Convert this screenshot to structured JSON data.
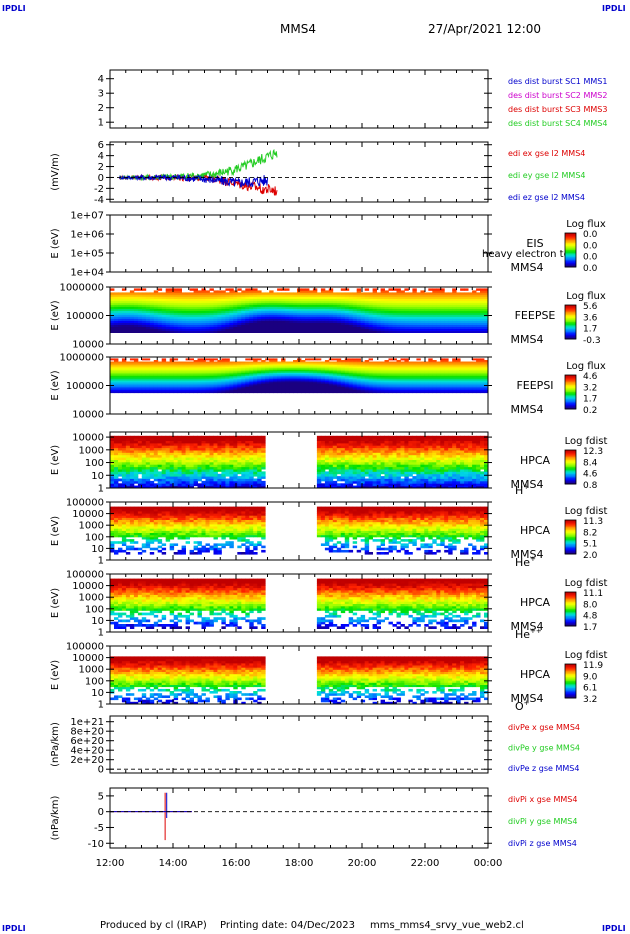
{
  "header": {
    "corner_tag": "IPDLI",
    "mission": "MMS4",
    "date_time": "27/Apr/2021 12:00"
  },
  "footer": {
    "credit": "Produced by cl (IRAP)",
    "printing_date": "Printing date: 04/Dec/2023",
    "script_name": "mms_mms4_srvy_vue_web2.cl"
  },
  "time_axis": {
    "tick_labels": [
      "12:00",
      "14:00",
      "16:00",
      "18:00",
      "20:00",
      "22:00",
      "00:00"
    ],
    "start_hour": 12,
    "end_hour": 24
  },
  "palette": {
    "blue": "#0000cc",
    "magenta": "#cc00cc",
    "red": "#dd0000",
    "green": "#22cc22",
    "spectro": [
      "#1a0080",
      "#0000ff",
      "#0080ff",
      "#00e0e0",
      "#00e000",
      "#a0ff00",
      "#ffff00",
      "#ff9900",
      "#ff2000",
      "#c00000"
    ]
  },
  "chart_data": [
    {
      "id": "des_dist_burst",
      "type": "line",
      "yticks": [
        "1",
        "2",
        "3",
        "4"
      ],
      "yvals": [
        1,
        2,
        3,
        4
      ],
      "ylim": [
        0.6,
        4.6
      ],
      "ylabel": "",
      "side_labels": [
        {
          "text": "des dist burst SC1 MMS1",
          "color": "#0000cc"
        },
        {
          "text": "des dist burst SC2 MMS2",
          "color": "#cc00cc"
        },
        {
          "text": "des dist burst SC3 MMS3",
          "color": "#dd0000"
        },
        {
          "text": "des dist burst SC4 MMS4",
          "color": "#22cc22"
        }
      ]
    },
    {
      "id": "edi_efield",
      "type": "line",
      "yticks": [
        "6",
        "4",
        "2",
        "0",
        "-2",
        "-4"
      ],
      "yvals": [
        6,
        4,
        2,
        0,
        -2,
        -4
      ],
      "ylim": [
        -4.5,
        6.5
      ],
      "ylabel": "(mV/m)",
      "zero_line": true,
      "series": [
        {
          "name": "edi ex gse l2 MMS4",
          "color": "#dd0000",
          "start_hour": 12.3,
          "end_hour": 17.3,
          "trend": [
            0,
            0,
            0,
            -0.2,
            -1.5,
            -2.5
          ]
        },
        {
          "name": "edi ey gse l2 MMS4",
          "color": "#22cc22",
          "start_hour": 12.3,
          "end_hour": 17.3,
          "trend": [
            0,
            0,
            0.2,
            0.5,
            2.0,
            4.5
          ]
        },
        {
          "name": "edi ez gse l2 MMS4",
          "color": "#0000cc",
          "start_hour": 12.3,
          "end_hour": 17.0,
          "trend": [
            0,
            0,
            0,
            -0.3,
            -1.0,
            -0.5
          ]
        }
      ],
      "side_labels": [
        {
          "text": "edi ex gse l2 MMS4",
          "color": "#dd0000"
        },
        {
          "text": "edi ey gse l2 MMS4",
          "color": "#22cc22"
        },
        {
          "text": "edi ez gse l2 MMS4",
          "color": "#0000cc"
        }
      ]
    },
    {
      "id": "eis",
      "type": "heatmap",
      "yticks": [
        "1e+07",
        "1e+06",
        "1e+05",
        "1e+04"
      ],
      "yvals": [
        7,
        6,
        5,
        4
      ],
      "ylim": [
        4,
        7
      ],
      "ylabel": "E (eV)",
      "log_y": true,
      "side_labels": [
        {
          "text": "EIS",
          "color": "#000000"
        },
        {
          "text": "MMS4",
          "color": "#000000"
        }
      ],
      "overlay_text": "heavy electron to",
      "colorbar": {
        "title": "Log flux",
        "ticks": [
          "0.0",
          "0.0",
          "0.0",
          "0.0"
        ]
      },
      "empty": true
    },
    {
      "id": "feepse",
      "type": "heatmap",
      "yticks": [
        "1000000",
        "100000",
        "10000"
      ],
      "yvals": [
        6,
        5,
        4
      ],
      "ylim": [
        4,
        6
      ],
      "ylabel": "E (eV)",
      "log_y": true,
      "side_labels": [
        {
          "text": "FEEPSE",
          "color": "#000000"
        },
        {
          "text": "MMS4",
          "color": "#000000"
        }
      ],
      "colorbar": {
        "title": "Log flux",
        "ticks": [
          "5.6",
          "3.6",
          "1.7",
          "-0.3"
        ]
      },
      "data_range": [
        4.4,
        5.95
      ],
      "peaks": [
        {
          "hour": 17.0,
          "strength": 1.0
        },
        {
          "hour": 19.0,
          "strength": 0.8
        },
        {
          "hour": 12.5,
          "strength": 0.6
        }
      ],
      "gap": null
    },
    {
      "id": "feepsi",
      "type": "heatmap",
      "yticks": [
        "1000000",
        "100000",
        "10000"
      ],
      "yvals": [
        6,
        5,
        4
      ],
      "ylim": [
        4,
        6
      ],
      "ylabel": "E (eV)",
      "log_y": true,
      "side_labels": [
        {
          "text": "FEEPSI",
          "color": "#000000"
        },
        {
          "text": "MMS4",
          "color": "#000000"
        }
      ],
      "colorbar": {
        "title": "Log flux",
        "ticks": [
          "4.6",
          "3.2",
          "1.7",
          "0.2"
        ]
      },
      "data_range": [
        4.75,
        5.95
      ],
      "peaks": [
        {
          "hour": 17.2,
          "strength": 1.0
        },
        {
          "hour": 18.6,
          "strength": 0.9
        }
      ],
      "gap": null
    },
    {
      "id": "hpca_h",
      "type": "heatmap",
      "yticks": [
        "10000",
        "1000",
        "100",
        "10",
        "1"
      ],
      "yvals": [
        4,
        3,
        2,
        1,
        0
      ],
      "ylim": [
        0,
        4.4
      ],
      "ylabel": "E (eV)",
      "log_y": true,
      "side_labels": [
        {
          "text": "HPCA",
          "color": "#000000"
        },
        {
          "text": "MMS4",
          "color": "#000000"
        }
      ],
      "species": {
        "base": "H",
        "sup": "+"
      },
      "colorbar": {
        "title": "Log fdist",
        "ticks": [
          "12.3",
          "8.4",
          "4.6",
          "0.8"
        ]
      },
      "data_range": [
        0,
        4.1
      ],
      "gap": [
        16.9,
        18.6
      ]
    },
    {
      "id": "hpca_he",
      "type": "heatmap",
      "yticks": [
        "100000",
        "10000",
        "1000",
        "100",
        "10",
        "1"
      ],
      "yvals": [
        5,
        4,
        3,
        2,
        1,
        0
      ],
      "ylim": [
        0,
        5
      ],
      "ylabel": "E (eV)",
      "log_y": true,
      "side_labels": [
        {
          "text": "HPCA",
          "color": "#000000"
        },
        {
          "text": "MMS4",
          "color": "#000000"
        }
      ],
      "species": {
        "base": "He",
        "sup": "+"
      },
      "colorbar": {
        "title": "Log fdist",
        "ticks": [
          "11.3",
          "8.2",
          "5.1",
          "2.0"
        ]
      },
      "data_range": [
        0.5,
        4.6
      ],
      "gap": [
        16.9,
        18.6
      ]
    },
    {
      "id": "hpca_hepp",
      "type": "heatmap",
      "yticks": [
        "100000",
        "10000",
        "1000",
        "100",
        "10",
        "1"
      ],
      "yvals": [
        5,
        4,
        3,
        2,
        1,
        0
      ],
      "ylim": [
        0,
        5
      ],
      "ylabel": "E (eV)",
      "log_y": true,
      "side_labels": [
        {
          "text": "HPCA",
          "color": "#000000"
        },
        {
          "text": "MMS4",
          "color": "#000000"
        }
      ],
      "species": {
        "base": "He",
        "sup": "++"
      },
      "colorbar": {
        "title": "Log fdist",
        "ticks": [
          "11.1",
          "8.0",
          "4.8",
          "1.7"
        ]
      },
      "data_range": [
        0.3,
        4.6
      ],
      "gap": [
        16.9,
        18.6
      ]
    },
    {
      "id": "hpca_o",
      "type": "heatmap",
      "yticks": [
        "100000",
        "10000",
        "1000",
        "100",
        "10",
        "1"
      ],
      "yvals": [
        5,
        4,
        3,
        2,
        1,
        0
      ],
      "ylim": [
        0,
        5
      ],
      "ylabel": "E (eV)",
      "log_y": true,
      "side_labels": [
        {
          "text": "HPCA",
          "color": "#000000"
        },
        {
          "text": "MMS4",
          "color": "#000000"
        }
      ],
      "species": {
        "base": "O",
        "sup": "+"
      },
      "colorbar": {
        "title": "Log fdist",
        "ticks": [
          "11.9",
          "9.0",
          "6.1",
          "3.2"
        ]
      },
      "data_range": [
        0,
        4.1
      ],
      "gap": [
        16.9,
        18.6
      ]
    },
    {
      "id": "divpe",
      "type": "line",
      "yticks": [
        "1e+21",
        "8e+20",
        "6e+20",
        "4e+20",
        "2e+20",
        "0"
      ],
      "yvals": [
        10,
        8,
        6,
        4,
        2,
        0
      ],
      "ylim": [
        -0.8,
        11.2
      ],
      "ylabel": "(nPa/km)",
      "zero_line": true,
      "side_labels": [
        {
          "text": "divPe x gse MMS4",
          "color": "#dd0000"
        },
        {
          "text": "divPe y gse MMS4",
          "color": "#22cc22"
        },
        {
          "text": "divPe z gse MMS4",
          "color": "#0000cc"
        }
      ]
    },
    {
      "id": "divpi",
      "type": "line",
      "yticks": [
        "5",
        "0",
        "-5",
        "-10"
      ],
      "yvals": [
        5,
        0,
        -5,
        -10
      ],
      "ylim": [
        -11.5,
        7.5
      ],
      "ylabel": "(nPa/km)",
      "zero_line": true,
      "series": [
        {
          "name": "divPi x gse MMS4",
          "color": "#dd0000",
          "spike_hour": 13.75,
          "spike": [
            -9,
            6
          ],
          "start_hour": 12.0,
          "end_hour": 14.6
        },
        {
          "name": "divPi z gse MMS4",
          "color": "#0000cc",
          "spike_hour": 13.8,
          "spike": [
            -2,
            6
          ],
          "start_hour": 12.0,
          "end_hour": 14.6
        }
      ],
      "side_labels": [
        {
          "text": "divPi x gse MMS4",
          "color": "#dd0000"
        },
        {
          "text": "divPi y gse MMS4",
          "color": "#22cc22"
        },
        {
          "text": "divPi z gse MMS4",
          "color": "#0000cc"
        }
      ]
    }
  ]
}
